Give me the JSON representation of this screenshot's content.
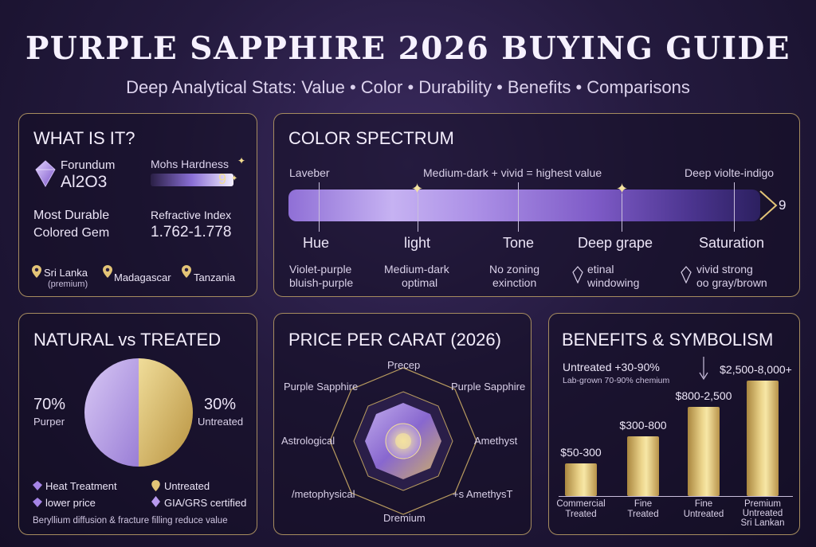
{
  "title": "PURPLE SAPPHIRE 2026 BUYING GUIDE",
  "subtitle": "Deep Analytical Stats: Value • Color • Durability • Benefits • Comparisons",
  "what_is_it": {
    "heading": "WHAT IS IT?",
    "mineral_label": "Forundum",
    "formula": "Al2O3",
    "mohs_label": "Mohs Hardness",
    "mohs_value": "9",
    "mohs_fraction": 1.0,
    "durable_line1": "Most Durable",
    "durable_line2": "Colored Gem",
    "ri_label": "Refractive Index",
    "ri_value": "1.762-1.778",
    "origins": [
      {
        "name": "Sri Lanka",
        "note": "(premium)"
      },
      {
        "name": "Madagascar",
        "note": ""
      },
      {
        "name": "Tanzania",
        "note": ""
      }
    ]
  },
  "color_spectrum": {
    "heading": "COLOR SPECTRUM",
    "left_label": "Laveber",
    "center_label": "Medium-dark + vivid = highest value",
    "right_label": "Deep violte-indigo",
    "end_value": "9",
    "stops": [
      {
        "name": "Hue",
        "desc1": "Violet-purple",
        "desc2": "bluish-purple"
      },
      {
        "name": "light",
        "desc1": "Medium-dark",
        "desc2": "optimal"
      },
      {
        "name": "Tone",
        "desc1": "No zoning",
        "desc2": "exinction"
      },
      {
        "name": "Deep grape",
        "desc1": "etinal",
        "desc2": "windowing"
      },
      {
        "name": "Saturation",
        "desc1": "vivid strong",
        "desc2": "oo gray/brown"
      }
    ]
  },
  "natural_vs_treated": {
    "heading": "NATURAL vs TREATED",
    "left_pct": "70%",
    "left_label": "Purper",
    "right_pct": "30%",
    "right_label": "Untreated",
    "colors": {
      "purple": "#b39be0",
      "gold": "#d9bd72"
    },
    "legend": [
      {
        "label": "Heat Treatment",
        "icon": "purple-gem-icon"
      },
      {
        "label": "Untreated",
        "icon": "gold-pin-icon"
      },
      {
        "label": "lower price",
        "icon": "purple-gem-icon"
      },
      {
        "label": "GIA/GRS certified",
        "icon": "purple-diamond-icon"
      }
    ],
    "footnote": "Beryllium diffusion & fracture filling reduce value"
  },
  "price_per_carat": {
    "heading": "PRICE PER CARAT (2026)",
    "labels": [
      "Precep",
      "Purple Sapphire",
      "Purple Sapphire",
      "Astrological",
      "Amethyst",
      "/metophysical",
      "+s AmethysT",
      "Dremium"
    ]
  },
  "benefits": {
    "heading": "BENEFITS & SYMBOLISM",
    "note1": "Untreated +30-90%",
    "note2": "Lab-grown 70-90% chemium"
  },
  "chart_data": {
    "type": "bar",
    "categories": [
      "Commercial Treated",
      "Fine Treated",
      "Fine Untreated",
      "Premium Untreated Sri Lankan"
    ],
    "category_lines": [
      [
        "Commercial",
        "Treated"
      ],
      [
        "Fine",
        "Treated"
      ],
      [
        "Fine",
        "Untreated"
      ],
      [
        "Premium",
        "Untreated",
        "Sri Lankan"
      ]
    ],
    "value_labels": [
      "$50-300",
      "$300-800",
      "$800-2,500",
      "$2,500-8,000+"
    ],
    "ranges": [
      [
        50,
        300
      ],
      [
        300,
        800
      ],
      [
        800,
        2500
      ],
      [
        2500,
        8000
      ]
    ],
    "relative_height": [
      0.28,
      0.52,
      0.77,
      1.0
    ],
    "title": "",
    "xlabel": "",
    "ylabel": ""
  }
}
